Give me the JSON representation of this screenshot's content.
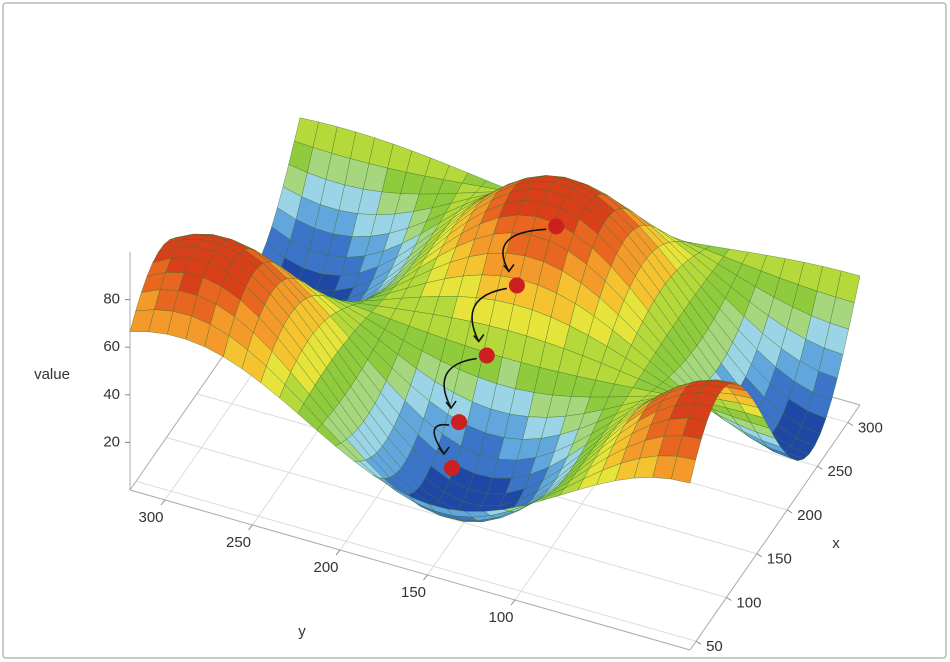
{
  "chart_data": {
    "type": "surface3d",
    "xlabel": "x",
    "ylabel": "y",
    "zlabel": "value",
    "xlim": [
      40,
      320
    ],
    "ylim": [
      0,
      320
    ],
    "zlim": [
      0,
      100
    ],
    "xticks": [
      50,
      100,
      150,
      200,
      250,
      300
    ],
    "yticks": [
      100,
      150,
      200,
      250,
      300
    ],
    "zticks": [
      20,
      40,
      60,
      80
    ],
    "grid": true,
    "points_color": "#cc1f1f",
    "points": [
      {
        "x": 226,
        "y": 141,
        "value": 80
      },
      {
        "x": 193,
        "y": 152,
        "value": 65
      },
      {
        "x": 152,
        "y": 155,
        "value": 50
      },
      {
        "x": 115,
        "y": 158,
        "value": 35
      },
      {
        "x": 92,
        "y": 154,
        "value": 25
      }
    ]
  }
}
